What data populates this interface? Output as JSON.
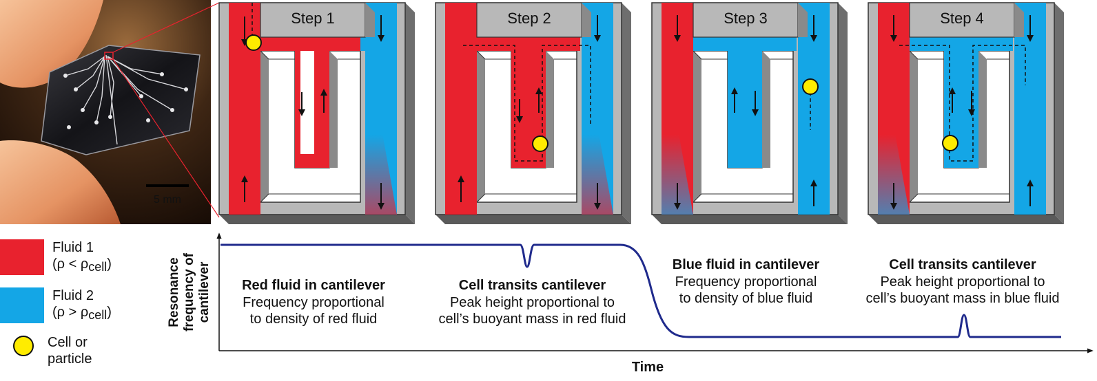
{
  "colors": {
    "fluid1": "#e8222e",
    "fluid2": "#14a6e6",
    "cell": "#ffec00",
    "frame": "#b8b8b8",
    "curve": "#1f2a8c"
  },
  "photo": {
    "scale_label": "5 mm"
  },
  "steps": [
    {
      "title": "Step 1"
    },
    {
      "title": "Step 2"
    },
    {
      "title": "Step 3"
    },
    {
      "title": "Step 4"
    }
  ],
  "legend": {
    "fluid1_line1": "Fluid 1",
    "fluid1_line2": "(ρ < ρ",
    "fluid1_sub": "cell",
    "fluid2_line1": "Fluid 2",
    "fluid2_line2": "(ρ > ρ",
    "fluid2_sub": "cell",
    "cell_line1": "Cell or",
    "cell_line2": "particle"
  },
  "graph": {
    "ylabel_line1": "Resonance",
    "ylabel_line2": "frequency of",
    "ylabel_line3": "cantilever",
    "xlabel": "Time",
    "annotations": [
      {
        "title": "Red fluid in cantilever",
        "line1": "Frequency proportional",
        "line2": "to density of red fluid"
      },
      {
        "title": "Cell transits cantilever",
        "line1": "Peak height proportional to",
        "line2": "cell’s buoyant mass in red fluid"
      },
      {
        "title": "Blue fluid in cantilever",
        "line1": "Frequency proportional",
        "line2": "to density of blue fluid"
      },
      {
        "title": "Cell transits cantilever",
        "line1": "Peak height proportional to",
        "line2": "cell’s buoyant mass in blue fluid"
      }
    ]
  }
}
